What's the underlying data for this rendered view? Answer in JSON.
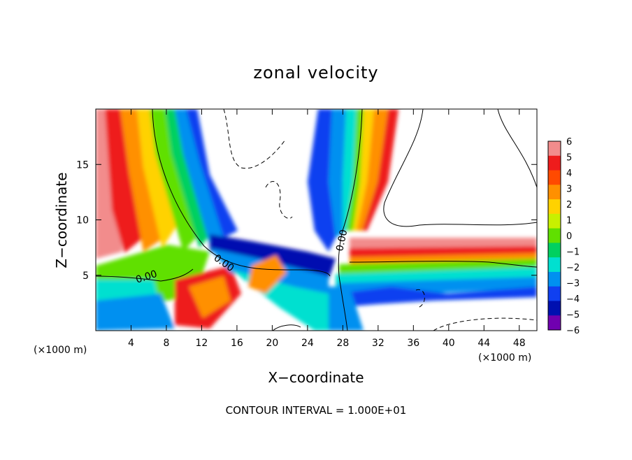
{
  "chart_data": {
    "type": "heatmap",
    "title": "zonal velocity",
    "xlabel": "X−coordinate",
    "ylabel": "Z−coordinate",
    "x_unit_left": "(×1000 m)",
    "x_unit_right": "(×1000 m)",
    "xlim": [
      0,
      50
    ],
    "ylim": [
      0,
      20
    ],
    "xticks": [
      4,
      8,
      12,
      16,
      20,
      24,
      28,
      32,
      36,
      40,
      44,
      48
    ],
    "yticks": [
      5,
      10,
      15
    ],
    "contour_labels": [
      "0.00",
      "0.00",
      "0.00"
    ],
    "footer": "CONTOUR INTERVAL = 1.000E+01",
    "colorbar": {
      "levels": [
        6,
        5,
        4,
        3,
        2,
        1,
        0,
        -1,
        -2,
        -3,
        -4,
        -5,
        -6
      ],
      "labels": [
        "6",
        "5",
        "4",
        "3",
        "2",
        "1",
        "0",
        "−1",
        "−2",
        "−3",
        "−4",
        "−5",
        "−6"
      ],
      "colors": [
        "#f28c8c",
        "#ee1c1c",
        "#ff4a00",
        "#ff9000",
        "#ffd200",
        "#c8f000",
        "#60e000",
        "#00d060",
        "#00e0d0",
        "#0090f0",
        "#1040f0",
        "#0010b0",
        "#7000b0"
      ]
    }
  }
}
